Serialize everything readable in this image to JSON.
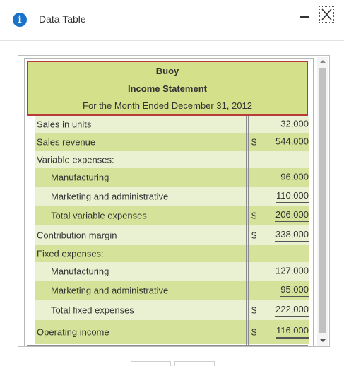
{
  "window": {
    "title": "Data Table",
    "info_icon": "info-icon",
    "minimize_icon": "minimize-icon",
    "close_icon": "close-icon",
    "close_glyph": "✕"
  },
  "statement": {
    "company": "Buoy",
    "title": "Income Statement",
    "period": "For the Month Ended December 31, 2012",
    "rows": [
      {
        "label": "Sales in units",
        "dollar": "",
        "amount": "32,000"
      },
      {
        "label": "Sales revenue",
        "dollar": "$",
        "amount": "544,000"
      },
      {
        "label": "Variable expenses:",
        "dollar": "",
        "amount": ""
      },
      {
        "label": "Manufacturing",
        "dollar": "",
        "amount": "96,000"
      },
      {
        "label": "Marketing and administrative",
        "dollar": "",
        "amount": "110,000"
      },
      {
        "label": "Total variable expenses",
        "dollar": "$",
        "amount": "206,000"
      },
      {
        "label": "Contribution margin",
        "dollar": "$",
        "amount": "338,000"
      },
      {
        "label": "Fixed expenses:",
        "dollar": "",
        "amount": ""
      },
      {
        "label": "Manufacturing",
        "dollar": "",
        "amount": "127,000"
      },
      {
        "label": "Marketing and administrative",
        "dollar": "",
        "amount": "95,000"
      },
      {
        "label": "Total fixed expenses",
        "dollar": "$",
        "amount": "222,000"
      },
      {
        "label": "Operating income",
        "dollar": "$",
        "amount": "116,000"
      }
    ]
  }
}
